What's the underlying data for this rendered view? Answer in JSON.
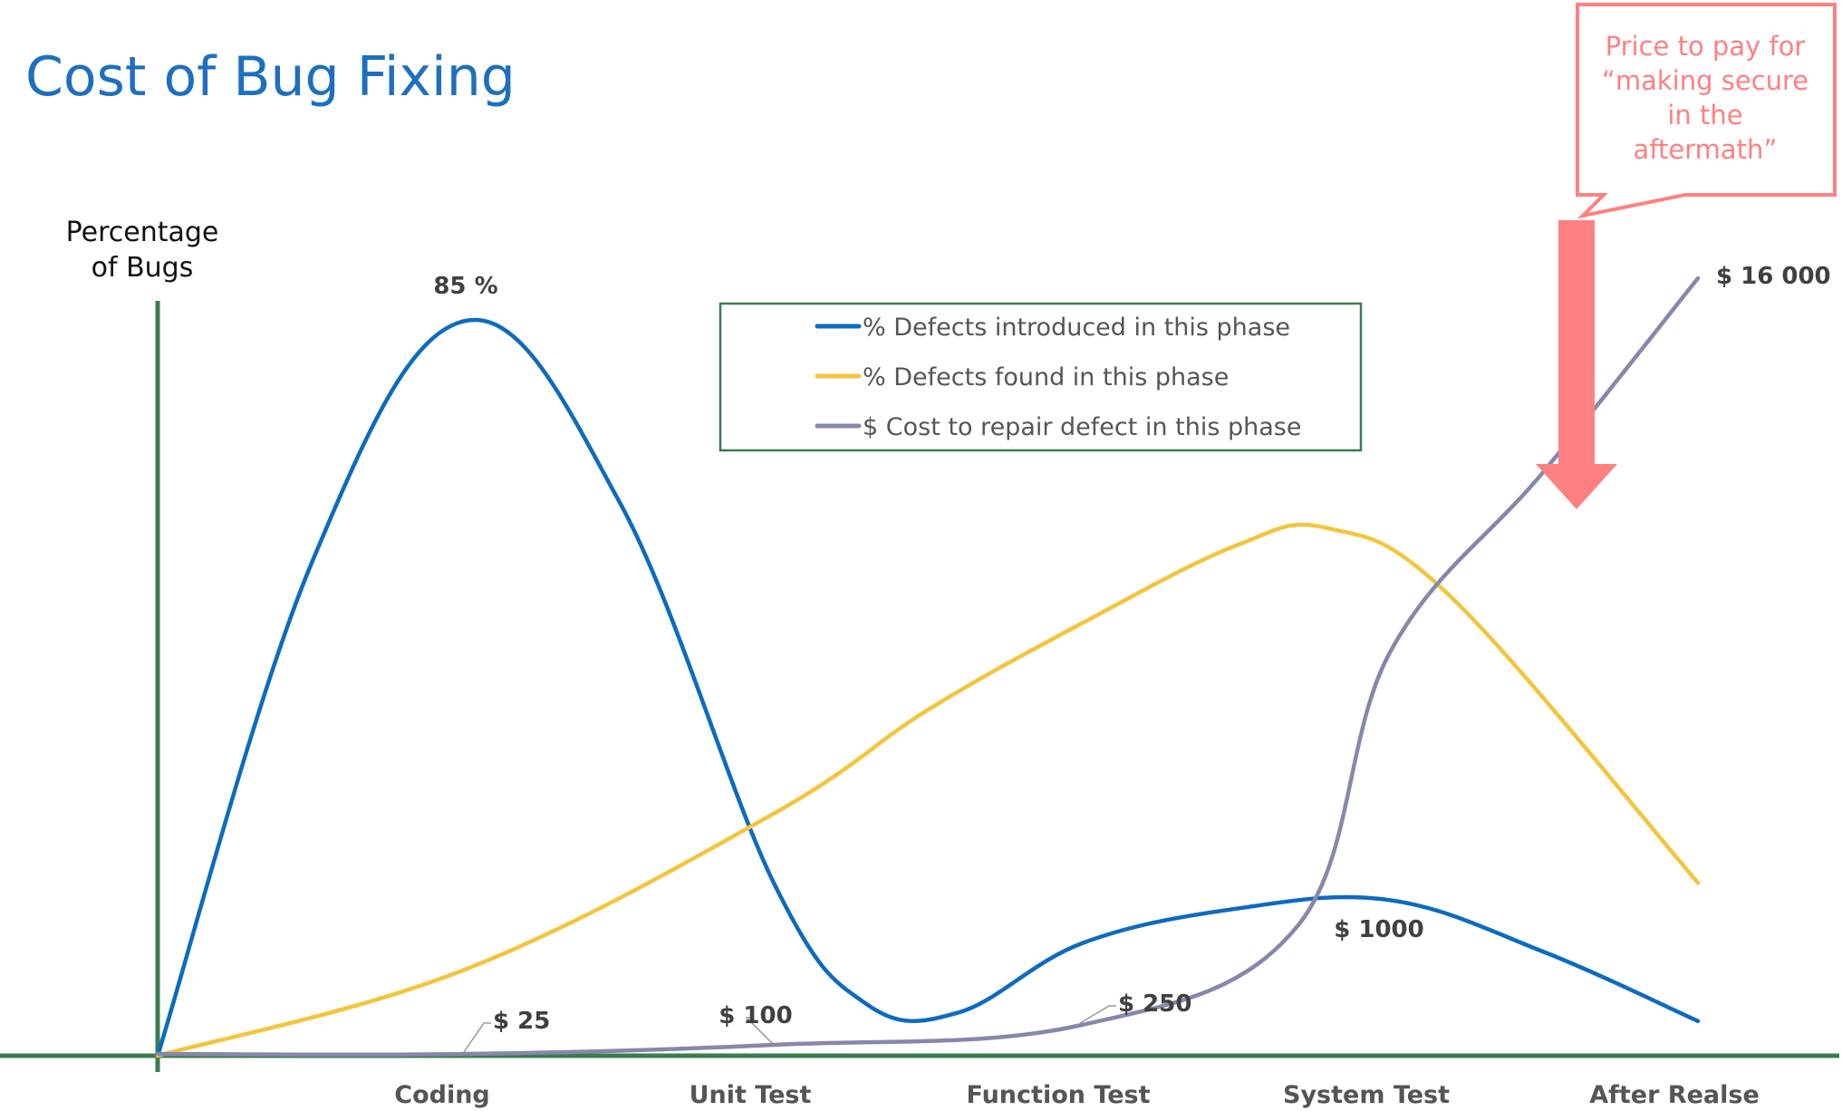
{
  "title": "Cost of Bug Fixing",
  "y_axis_label_lines": [
    "Percentage",
    "of Bugs"
  ],
  "callout": {
    "lines": [
      "Price to pay for",
      "“making secure",
      "in the",
      "aftermath”"
    ],
    "color": "#ff8080"
  },
  "colors": {
    "title": "#1f6fbf",
    "axis": "#3a7d4f",
    "legend_border": "#3a7d4f",
    "introduced": "#0d6bbf",
    "found": "#f2c53d",
    "cost": "#8688aa",
    "label": "#404040"
  },
  "chart_data": {
    "type": "line",
    "categories": [
      "Coding",
      "Unit Test",
      "Function Test",
      "System Test",
      "After Realse"
    ],
    "x_range": [
      0,
      5
    ],
    "y_range_percent": [
      0,
      100
    ],
    "legend_position": "top-center",
    "series": [
      {
        "name": "% Defects introduced in this phase",
        "key": "introduced",
        "points": [
          [
            0,
            0
          ],
          [
            0.5,
            57
          ],
          [
            1,
            85
          ],
          [
            1.5,
            64
          ],
          [
            2,
            20
          ],
          [
            2.3,
            6
          ],
          [
            2.6,
            5
          ],
          [
            3,
            13
          ],
          [
            3.5,
            17
          ],
          [
            4,
            18
          ],
          [
            4.5,
            12
          ],
          [
            5,
            4
          ]
        ]
      },
      {
        "name": "% Defects found in this phase",
        "key": "found",
        "points": [
          [
            0,
            0
          ],
          [
            1,
            10
          ],
          [
            2,
            28
          ],
          [
            2.5,
            40
          ],
          [
            3,
            50
          ],
          [
            3.5,
            59
          ],
          [
            3.8,
            61
          ],
          [
            4.2,
            53
          ],
          [
            5,
            20
          ]
        ]
      },
      {
        "name": "$ Cost to repair defect in this phase",
        "key": "cost",
        "points": [
          [
            0,
            25
          ],
          [
            1,
            25
          ],
          [
            2,
            100
          ],
          [
            3,
            250
          ],
          [
            3.7,
            1000
          ],
          [
            4,
            3800
          ],
          [
            4.5,
            10000
          ],
          [
            5,
            16000
          ]
        ],
        "unit": "$"
      }
    ],
    "annotations": [
      {
        "text": "85 %",
        "x": 1,
        "y_percent": 85
      },
      {
        "text": "$ 25",
        "x": 1,
        "cost": 25
      },
      {
        "text": "$ 100",
        "x": 2,
        "cost": 100
      },
      {
        "text": "$ 250",
        "x": 3,
        "cost": 250
      },
      {
        "text": "$ 1000",
        "x": 3.7,
        "cost": 1000
      },
      {
        "text": "$ 16 000",
        "x": 5,
        "cost": 16000
      }
    ]
  }
}
